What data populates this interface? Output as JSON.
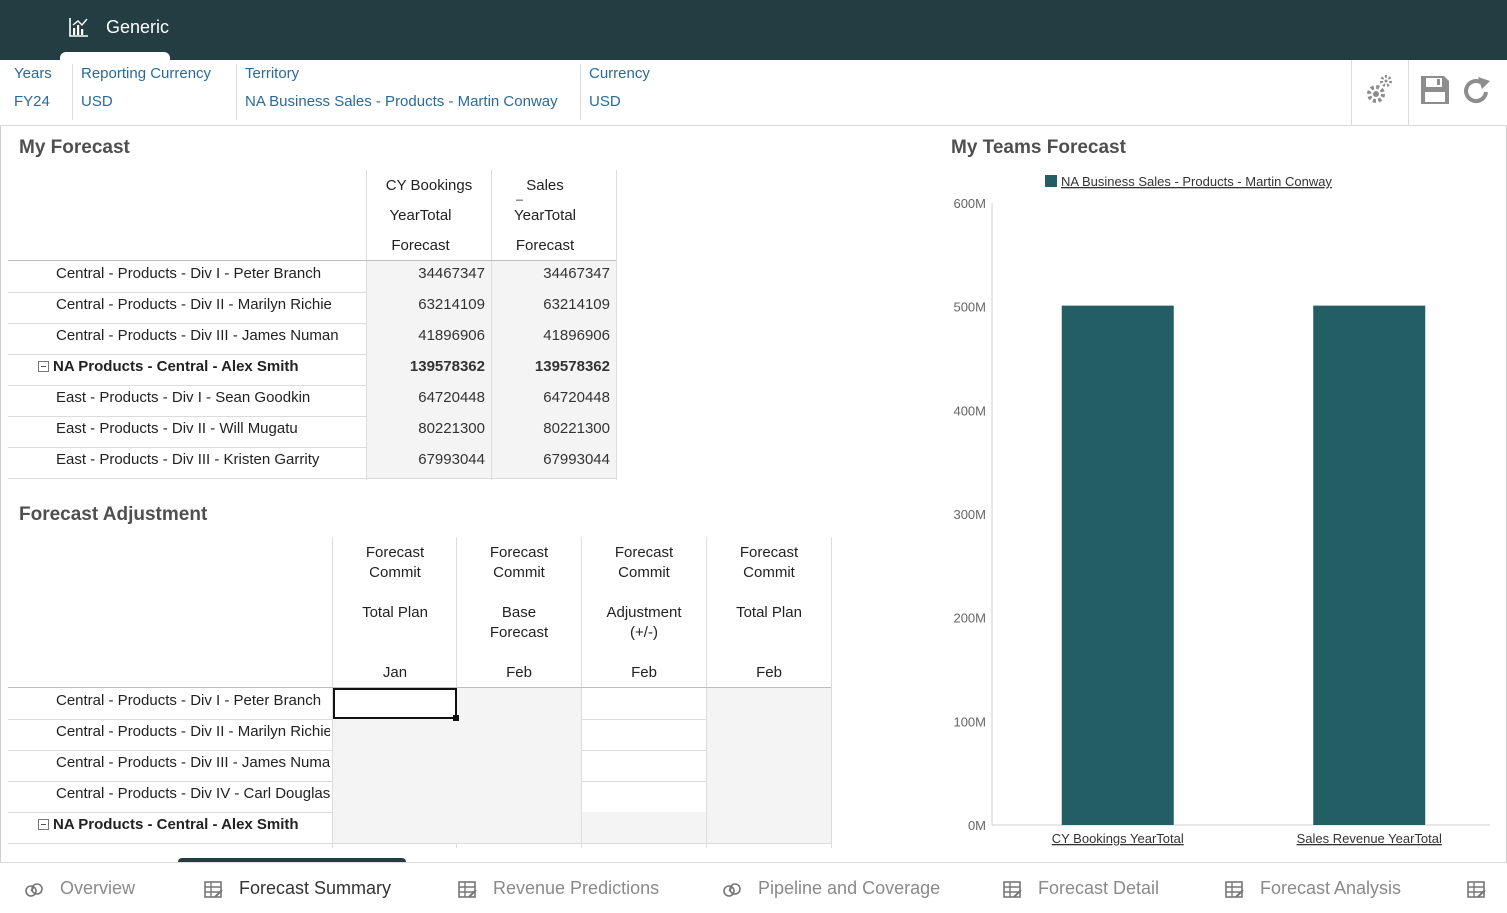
{
  "header": {
    "app_title": "Generic"
  },
  "pov": {
    "items": [
      {
        "key": "Years",
        "value": "FY24"
      },
      {
        "key": "Reporting Currency",
        "value": "USD"
      },
      {
        "key": "Territory",
        "value": "NA Business Sales - Products - Martin Conway"
      },
      {
        "key": "Currency",
        "value": "USD"
      }
    ]
  },
  "my_forecast": {
    "title": "My Forecast",
    "col1": {
      "h1": "CY Bookings",
      "h2": "YearTotal",
      "h3": "Forecast"
    },
    "col2": {
      "h1": "Sales",
      "h1b": "_",
      "h2": "YearTotal",
      "h3": "Forecast"
    },
    "rows": [
      {
        "label": "Central - Products - Div I - Peter Branch",
        "v1": "34467347",
        "v2": "34467347"
      },
      {
        "label": "Central - Products - Div II - Marilyn Richie",
        "v1": "63214109",
        "v2": "63214109"
      },
      {
        "label": "Central - Products - Div III - James Numan",
        "v1": "41896906",
        "v2": "41896906"
      },
      {
        "label": "NA Products - Central - Alex Smith",
        "v1": "139578362",
        "v2": "139578362"
      },
      {
        "label": "East - Products - Div I - Sean Goodkin",
        "v1": "64720448",
        "v2": "64720448"
      },
      {
        "label": "East - Products - Div II - Will Mugatu",
        "v1": "80221300",
        "v2": "80221300"
      },
      {
        "label": "East - Products - Div III - Kristen Garrity",
        "v1": "67993044",
        "v2": "67993044"
      }
    ]
  },
  "forecast_adjustment": {
    "title": "Forecast Adjustment",
    "columns": [
      {
        "h1": "Forecast",
        "h2": "Commit",
        "h3": "Total Plan",
        "h4": "",
        "month": "Jan"
      },
      {
        "h1": "Forecast",
        "h2": "Commit",
        "h3": "Base",
        "h4": "Forecast",
        "month": "Feb"
      },
      {
        "h1": "Forecast",
        "h2": "Commit",
        "h3": "Adjustment",
        "h4": "(+/-)",
        "month": "Feb"
      },
      {
        "h1": "Forecast",
        "h2": "Commit",
        "h3": "Total Plan",
        "h4": "",
        "month": "Feb"
      }
    ],
    "rows": [
      {
        "label": "Central - Products - Div I - Peter Branch"
      },
      {
        "label": "Central - Products - Div II - Marilyn Richie"
      },
      {
        "label": "Central - Products - Div III - James Numa"
      },
      {
        "label": "Central - Products - Div IV - Carl Douglas"
      },
      {
        "label": "NA Products - Central - Alex Smith"
      }
    ]
  },
  "teams_forecast": {
    "title": "My Teams Forecast"
  },
  "chart_data": {
    "type": "bar",
    "title": "My Teams Forecast",
    "categories": [
      "CY Bookings YearTotal",
      "Sales Revenue YearTotal"
    ],
    "series": [
      {
        "name": "NA Business Sales - Products - Martin Conway",
        "values": [
          501000000,
          501000000
        ],
        "color": "#235e64"
      }
    ],
    "ylim": [
      0,
      600000000
    ],
    "yticks": [
      "0M",
      "100M",
      "200M",
      "300M",
      "400M",
      "500M",
      "600M"
    ],
    "legend": "top"
  },
  "bottom_tabs": [
    {
      "label": "Overview",
      "icon": "dashboard-icon"
    },
    {
      "label": "Forecast Summary",
      "icon": "grid-icon"
    },
    {
      "label": "Revenue Predictions",
      "icon": "grid-icon"
    },
    {
      "label": "Pipeline and Coverage",
      "icon": "dashboard-icon"
    },
    {
      "label": "Forecast Detail",
      "icon": "grid-icon"
    },
    {
      "label": "Forecast Analysis",
      "icon": "grid-icon"
    }
  ],
  "colors": {
    "header_bg": "#233d43",
    "link": "#2a6a9a",
    "bar": "#235e64"
  }
}
